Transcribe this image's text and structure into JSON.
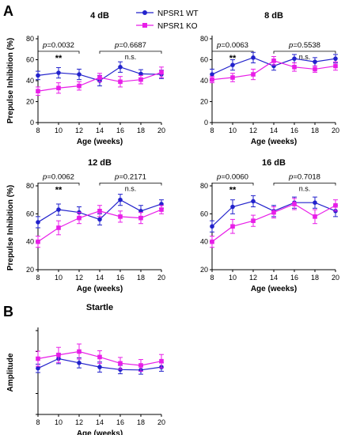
{
  "panel_labels": [
    "A",
    "B"
  ],
  "legend": {
    "items": [
      {
        "label": "NPSR1 WT",
        "color": "#2222cc",
        "marker": "circle"
      },
      {
        "label": "NPSR1 KO",
        "color": "#e81ee8",
        "marker": "square"
      }
    ]
  },
  "colors": {
    "wt": "#2222cc",
    "ko": "#e81ee8"
  },
  "chart_data": [
    {
      "type": "line",
      "title": "4 dB",
      "xlabel": "Age (weeks)",
      "ylabel": "Prepulse Inhibition (%)",
      "x": [
        8,
        10,
        12,
        14,
        16,
        18,
        20
      ],
      "xlim": [
        8,
        20
      ],
      "ylim": [
        0,
        80
      ],
      "xticks": [
        "8",
        "10",
        "12",
        "14",
        "16",
        "18",
        "20"
      ],
      "yticks": [
        "0",
        "20",
        "40",
        "60",
        "80"
      ],
      "series": [
        {
          "name": "NPSR1 WT",
          "values": [
            45,
            47.5,
            46,
            40,
            53,
            46.5,
            46
          ],
          "err": [
            4,
            5,
            5,
            5,
            5,
            4,
            4
          ]
        },
        {
          "name": "NPSR1 KO",
          "values": [
            30,
            33,
            35,
            43,
            39,
            41,
            48
          ],
          "err": [
            4,
            5,
            4,
            4,
            5,
            4,
            5
          ]
        }
      ],
      "annotations": [
        {
          "pvalue": "0.0032",
          "sig": "**",
          "from": 8,
          "to": 12
        },
        {
          "pvalue": "0.6687",
          "sig": "n.s.",
          "from": 14,
          "to": 20
        }
      ]
    },
    {
      "type": "line",
      "title": "8 dB",
      "xlabel": "Age (weeks)",
      "ylabel": "",
      "x": [
        8,
        10,
        12,
        14,
        16,
        18,
        20
      ],
      "xlim": [
        8,
        20
      ],
      "ylim": [
        0,
        80
      ],
      "xticks": [
        "8",
        "10",
        "12",
        "14",
        "16",
        "18",
        "20"
      ],
      "yticks": [
        "0",
        "20",
        "40",
        "60",
        "80"
      ],
      "series": [
        {
          "name": "NPSR1 WT",
          "values": [
            46,
            55,
            62,
            54,
            61,
            58,
            61
          ],
          "err": [
            5,
            5,
            5,
            4,
            4,
            4,
            4
          ]
        },
        {
          "name": "NPSR1 KO",
          "values": [
            41,
            43,
            46,
            59,
            53,
            51,
            54
          ],
          "err": [
            3,
            4,
            5,
            4,
            4,
            3,
            4
          ]
        }
      ],
      "annotations": [
        {
          "pvalue": "0.0063",
          "sig": "**",
          "from": 8,
          "to": 12
        },
        {
          "pvalue": "0.5538",
          "sig": "n.s.",
          "from": 14,
          "to": 20
        }
      ]
    },
    {
      "type": "line",
      "title": "12 dB",
      "xlabel": "Age (weeks)",
      "ylabel": "Prepulse Inhibition (%)",
      "x": [
        8,
        10,
        12,
        14,
        16,
        18,
        20
      ],
      "xlim": [
        8,
        20
      ],
      "ylim": [
        20,
        80
      ],
      "xticks": [
        "8",
        "10",
        "12",
        "14",
        "16",
        "18",
        "20"
      ],
      "yticks": [
        "20",
        "40",
        "60",
        "80"
      ],
      "series": [
        {
          "name": "NPSR1 WT",
          "values": [
            54,
            63,
            61,
            56,
            70,
            62,
            67
          ],
          "err": [
            4,
            4,
            4,
            4,
            4,
            4,
            3
          ]
        },
        {
          "name": "NPSR1 KO",
          "values": [
            40,
            50,
            57,
            62,
            58,
            57,
            63
          ],
          "err": [
            4,
            5,
            4,
            4,
            4,
            4,
            3
          ]
        }
      ],
      "annotations": [
        {
          "pvalue": "0.0062",
          "sig": "**",
          "from": 8,
          "to": 12
        },
        {
          "pvalue": "0.2171",
          "sig": "n.s.",
          "from": 14,
          "to": 20
        }
      ]
    },
    {
      "type": "line",
      "title": "16 dB",
      "xlabel": "Age (weeks)",
      "ylabel": "",
      "x": [
        8,
        10,
        12,
        14,
        16,
        18,
        20
      ],
      "xlim": [
        8,
        20
      ],
      "ylim": [
        20,
        80
      ],
      "xticks": [
        "8",
        "10",
        "12",
        "14",
        "16",
        "18",
        "20"
      ],
      "yticks": [
        "20",
        "40",
        "60",
        "80"
      ],
      "series": [
        {
          "name": "NPSR1 WT",
          "values": [
            51,
            65,
            69,
            62,
            68,
            68,
            62
          ],
          "err": [
            4,
            5,
            4,
            4,
            4,
            4,
            4
          ]
        },
        {
          "name": "NPSR1 KO",
          "values": [
            40,
            51,
            55,
            61,
            67,
            58,
            66
          ],
          "err": [
            4,
            5,
            4,
            4,
            4,
            5,
            4
          ]
        }
      ],
      "annotations": [
        {
          "pvalue": "0.0060",
          "sig": "**",
          "from": 8,
          "to": 12
        },
        {
          "pvalue": "0.7018",
          "sig": "n.s.",
          "from": 14,
          "to": 20
        }
      ]
    },
    {
      "type": "line",
      "title": "Startle",
      "xlabel": "Age (weeks)",
      "ylabel": "Amplitude",
      "x": [
        8,
        10,
        12,
        14,
        16,
        18,
        20
      ],
      "xlim": [
        8,
        20
      ],
      "ylim": [
        0,
        200
      ],
      "xticks": [
        "8",
        "10",
        "12",
        "14",
        "16",
        "18",
        "20"
      ],
      "yticks": [],
      "series": [
        {
          "name": "NPSR1 WT",
          "values": [
            110,
            133,
            123,
            113,
            107,
            106,
            113
          ],
          "err": [
            10,
            12,
            12,
            12,
            10,
            10,
            10
          ]
        },
        {
          "name": "NPSR1 KO",
          "values": [
            133,
            142,
            150,
            137,
            122,
            117,
            127
          ],
          "err": [
            18,
            18,
            18,
            15,
            14,
            14,
            16
          ]
        }
      ],
      "annotations": []
    }
  ]
}
